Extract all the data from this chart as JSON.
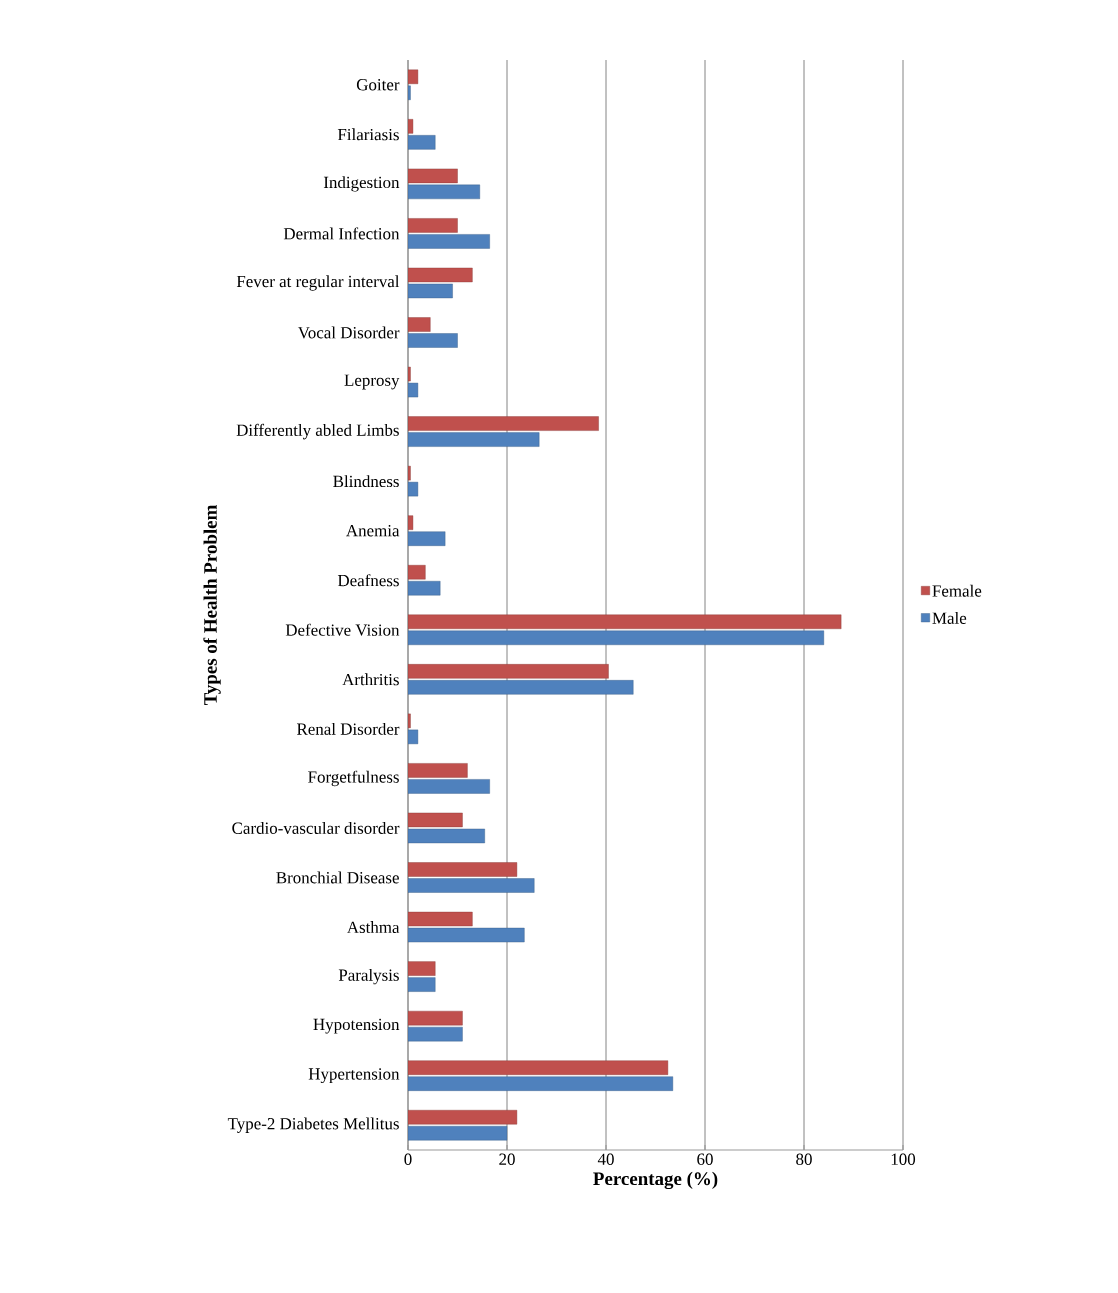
{
  "chart_data": {
    "type": "bar",
    "orientation": "horizontal",
    "xlabel": "Percentage (%)",
    "ylabel": "Types of Health Problem",
    "categories": [
      "Goiter",
      "Filariasis",
      "Indigestion",
      "Dermal Infection",
      "Fever at regular interval",
      "Vocal Disorder",
      "Leprosy",
      "Differently abled Limbs",
      "Blindness",
      "Anemia",
      "Deafness",
      "Defective Vision",
      "Arthritis",
      "Renal Disorder",
      "Forgetfulness",
      "Cardio-vascular disorder",
      "Bronchial Disease",
      "Asthma",
      "Paralysis",
      "Hypotension",
      "Hypertension",
      "Type-2 Diabetes Mellitus"
    ],
    "series": [
      {
        "name": "Female",
        "color": "#c0504d",
        "values": [
          2,
          1,
          10,
          10,
          13,
          4.5,
          0.5,
          38.5,
          0.5,
          1,
          3.5,
          87.5,
          40.5,
          0.5,
          12,
          11,
          22,
          13,
          5.5,
          11,
          52.5,
          22
        ]
      },
      {
        "name": "Male",
        "color": "#4f81bd",
        "values": [
          0.5,
          5.5,
          14.5,
          16.5,
          9,
          10,
          2,
          26.5,
          2,
          7.5,
          6.5,
          84,
          45.5,
          2,
          16.5,
          15.5,
          25.5,
          23.5,
          5.5,
          11,
          53.5,
          20
        ]
      }
    ],
    "xlim": [
      0,
      100
    ],
    "xticks": [
      0,
      20,
      40,
      60,
      80,
      100
    ],
    "grid": "x",
    "legend": "right"
  }
}
